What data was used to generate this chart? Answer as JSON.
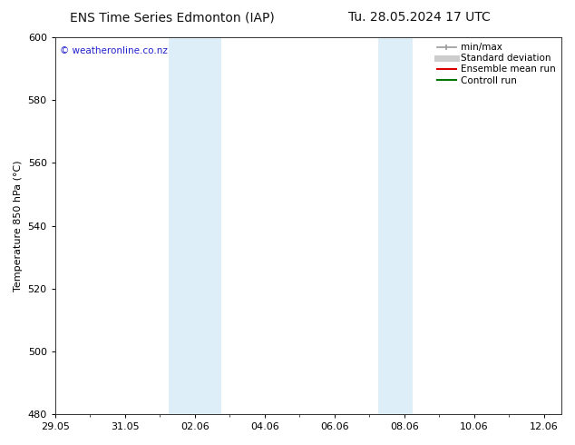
{
  "title_left": "ENS Time Series Edmonton (IAP)",
  "title_right": "Tu. 28.05.2024 17 UTC",
  "ylabel": "Temperature 850 hPa (°C)",
  "ylim": [
    480,
    600
  ],
  "yticks": [
    480,
    500,
    520,
    540,
    560,
    580,
    600
  ],
  "bg_color": "#ffffff",
  "plot_bg_color": "#ffffff",
  "watermark": "© weatheronline.co.nz",
  "watermark_color": "#2222cc",
  "shaded_bands": [
    {
      "x_start": 3.25,
      "x_end": 3.75,
      "color": "#ddeef8"
    },
    {
      "x_start": 3.75,
      "x_end": 4.75,
      "color": "#ddeef8"
    },
    {
      "x_start": 9.25,
      "x_end": 9.75,
      "color": "#ddeef8"
    },
    {
      "x_start": 9.75,
      "x_end": 10.25,
      "color": "#ddeef8"
    }
  ],
  "x_tick_labels": [
    "29.05",
    "31.05",
    "02.06",
    "04.06",
    "06.06",
    "08.06",
    "10.06",
    "12.06"
  ],
  "x_tick_positions": [
    0,
    2,
    4,
    6,
    8,
    10,
    12,
    14
  ],
  "x_lim": [
    0,
    14.5
  ],
  "legend_entries": [
    {
      "label": "min/max",
      "color": "#999999",
      "lw": 1.2,
      "ls": "-",
      "marker": "|"
    },
    {
      "label": "Standard deviation",
      "color": "#cccccc",
      "lw": 5,
      "ls": "-"
    },
    {
      "label": "Ensemble mean run",
      "color": "#dd0000",
      "lw": 1.5,
      "ls": "-"
    },
    {
      "label": "Controll run",
      "color": "#007700",
      "lw": 1.5,
      "ls": "-"
    }
  ],
  "title_fontsize": 10,
  "tick_fontsize": 8,
  "label_fontsize": 8,
  "legend_fontsize": 7.5
}
